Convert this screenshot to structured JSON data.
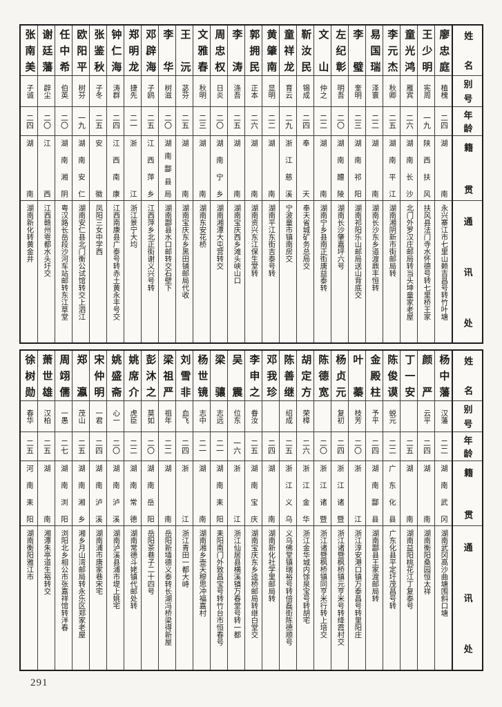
{
  "page": {
    "number": "291"
  },
  "headers": {
    "name": "姓名",
    "alias": "别号",
    "age": "年龄",
    "native": "籍贯",
    "address": "通讯处"
  },
  "table_top": {
    "entries": [
      {
        "name": "廖忠庭",
        "alias": "植槐",
        "age": "二四",
        "native": "湖南",
        "address": "永兴寨江市七里山赖吉昌号转竹叶塘"
      },
      {
        "name": "王少明",
        "alias": "宪周",
        "age": "一九",
        "native": "陕西扶风",
        "address": "扶风县法门寺水怀德号转七里桥王家"
      },
      {
        "name": "童光鸿",
        "alias": "雁宾",
        "age": "二六",
        "native": "湖南长沙",
        "address": "北门外罗汉庄邮局转当头坤童家老屋"
      },
      {
        "name": "李元杰",
        "alias": "秋卿",
        "age": "二五",
        "native": "湖南平江",
        "address": "湖南湘阴新市街邮局转"
      },
      {
        "name": "易国瑞",
        "alias": "泽寰",
        "age": "二二",
        "native": "湖南",
        "address": "湖南长沙东乡道渡鼎丰恒转"
      },
      {
        "name": "李璧",
        "alias": "奎明",
        "age": "二三",
        "native": "湖南祁阳",
        "address": "湖南祁阳乐山邮局送山背底交"
      },
      {
        "name": "左纪彰",
        "alias": "明吾",
        "age": "二〇",
        "native": "湖南醴陵",
        "address": "湖南长沙肇嘉坪六号"
      },
      {
        "name": "文山",
        "alias": "仲之",
        "age": "二二",
        "native": "湖南",
        "address": "湖南宁乡县南正街唐益泰转"
      },
      {
        "name": "靳汝民",
        "alias": "锡成",
        "age": "二四",
        "native": "奉天",
        "address": "奉天省城矿务总局交"
      },
      {
        "name": "童祥龙",
        "alias": "育云",
        "age": "二九",
        "native": "浙江慈溪",
        "address": "宁波童市镇南房交"
      },
      {
        "name": "黄肇南",
        "alias": "显明",
        "age": "二二",
        "native": "湖南",
        "address": "湖南平江东街吉泰号转"
      },
      {
        "name": "郭拥民",
        "alias": "正本",
        "age": "二六",
        "native": "湖南",
        "address": "湖南资兴东江保生堂转"
      },
      {
        "name": "李涛",
        "alias": "涤吾",
        "age": "二五",
        "native": "湖南",
        "address": "湖南宝庆西乡滩头峡山口"
      },
      {
        "name": "周忠权",
        "alias": "日炎",
        "age": "二〇",
        "native": "湖南宁乡",
        "address": "湖南湘潭大屯营转交"
      },
      {
        "name": "文雅春",
        "alias": "秋明",
        "age": "二三",
        "native": "湖南",
        "address": "湖南东安花桥"
      },
      {
        "name": "王沅",
        "alias": "苾芬",
        "age": "二五",
        "native": "湖南",
        "address": "湖南宝庆东乡黑田铺邮局代收"
      },
      {
        "name": "李华",
        "alias": "树滋",
        "age": "二〇",
        "native": "湖南酃县局",
        "address": "湖南酃县水口邮转交石壁下"
      },
      {
        "name": "邓辟海",
        "alias": "子鸥",
        "age": "二五",
        "native": "江西萍乡",
        "address": "江西萍乡北正街谢义兴号转"
      },
      {
        "name": "郑明龙",
        "alias": "捷先",
        "age": "二一",
        "native": "浙江",
        "address": "浙江景宁大均"
      },
      {
        "name": "钟仁海",
        "alias": "涛群",
        "age": "二四",
        "native": "江西南康",
        "address": "江西南康县广泰号转赤土黄永丰号交"
      },
      {
        "name": "张鉴秋",
        "alias": "子冬",
        "age": "二五",
        "native": "安徽",
        "address": "凤阳三女中学西"
      },
      {
        "name": "欧阳平",
        "alias": "树芬",
        "age": "一九",
        "native": "湖南安仁",
        "address": "湖南安仁县北门衡公试馆转交上泗江"
      },
      {
        "name": "任中希",
        "alias": "伯英",
        "age": "二〇",
        "native": "湖南湘阴",
        "address": "粤汉路长岳段沙河车站邮转东江草堂"
      },
      {
        "name": "谢廷藩",
        "alias": "辟尘",
        "age": "二〇",
        "native": "江西",
        "address": "江西赣州雩都水头圩交"
      },
      {
        "name": "张南美",
        "alias": "子诚",
        "age": "二四",
        "native": "湖南",
        "address": "湖南新化转黄金井"
      }
    ]
  },
  "table_bottom": {
    "entries": [
      {
        "name": "杨中藩",
        "alias": "汉藩",
        "age": "二二",
        "native": "湖南武冈",
        "address": "湖南武冈高沙曲塘围斜口塘"
      },
      {
        "name": "颜严",
        "alias": "云平",
        "age": "二四",
        "native": "湖南",
        "address": "湖南衡阳桑园恒太祥"
      },
      {
        "name": "丁一安",
        "alias": "",
        "age": "二五",
        "native": "湖南",
        "address": "湖南益阳桃花江丁复泰号"
      },
      {
        "name": "陈俊谟",
        "alias": "蜕元",
        "age": "二二",
        "native": "广东化县",
        "address": "广东化县平定圩茂昌号转"
      },
      {
        "name": "金殿柱",
        "alias": "予平",
        "age": "二四",
        "native": "湖南酃县",
        "address": "湖南酃县王家渡邮局转"
      },
      {
        "name": "叶蓁",
        "alias": "枝芳",
        "age": "二〇",
        "native": "浙江",
        "address": "浙江淳安港口镇万泰昌号转里阳庄"
      },
      {
        "name": "杨贞元",
        "alias": "复初",
        "age": "二四",
        "native": "浙江诸暨",
        "address": "浙江诸暨枫桥镇元亨米号转绛霞村交"
      },
      {
        "name": "陈德宽",
        "alias": "",
        "age": "二〇",
        "native": "浙江诸暨",
        "address": "浙江诸暨枫桥镇同亨米行转上培交"
      },
      {
        "name": "胡定方",
        "alias": "荣樟",
        "age": "二六",
        "native": "浙江金华",
        "address": "浙江金华城内馀泉宝号转胡宅"
      },
      {
        "name": "陈善继",
        "alias": "绍成",
        "age": "二五",
        "native": "浙江义乌",
        "address": "义乌佛堂镇瑞裕号转倍磊街陈德顺号"
      },
      {
        "name": "邓我珍",
        "alias": "",
        "age": "二四",
        "native": "湖南",
        "address": "湖南新化社学里邮局转"
      },
      {
        "name": "李申之",
        "alias": "眷汝",
        "age": "二五",
        "native": "湖南宝庆",
        "address": "湖南宝庆东乡逵桥邮局转继白堂交"
      },
      {
        "name": "吴震",
        "alias": "位东",
        "age": "一六",
        "native": "浙江",
        "address": "浙江仙居县横溪镇万春堂号转一都"
      },
      {
        "name": "梁骧",
        "alias": "志远",
        "age": "二一",
        "native": "湖南耒阳",
        "address": "耒阳南门外致昌宝号转竹台市恒春号"
      },
      {
        "name": "杨世镜",
        "alias": "志中",
        "age": "二一",
        "native": "湖南",
        "address": "湖南湘乡壶天穆思冲福嘉村"
      },
      {
        "name": "刘雪非",
        "alias": "血飞",
        "age": "二四",
        "native": "浙江",
        "address": "浙江青田一都大峙"
      },
      {
        "name": "梁祖严",
        "alias": "祖年",
        "age": "二二",
        "native": "湖南",
        "address": "岳阳新墙德义泰转长湖冯桥梁得新屋"
      },
      {
        "name": "彭沐之",
        "alias": "莫如",
        "age": "二〇",
        "native": "湖南岳阳",
        "address": "岳阳茶巷子二十四号"
      },
      {
        "name": "姚席介",
        "alias": "虎臣",
        "age": "二二",
        "native": "湖南常德",
        "address": "湖南常德斗姥镇代邮处转"
      },
      {
        "name": "姚盛斋",
        "alias": "心一",
        "age": "二〇",
        "native": "湖南泸溪",
        "address": "湖南泸溪县浦市堤上姚宅"
      },
      {
        "name": "宋仲明",
        "alias": "一君",
        "age": "二四",
        "native": "湖南泸溪",
        "address": "湖南浦市唐家巷宋宅"
      },
      {
        "name": "郑瀛",
        "alias": "茂山",
        "age": "二五",
        "native": "湖南湘乡",
        "address": "湘乡月山湾邮局转永乐区郑家老屋"
      },
      {
        "name": "周翊儒",
        "alias": "一愚",
        "age": "二七",
        "native": "湖南浏阳",
        "address": "浏阳北乡相公市张嘉祥馆转泮春"
      },
      {
        "name": "萧世雄",
        "alias": "汉柏",
        "age": "二五",
        "native": "湖南",
        "address": "湘潭朱亭道生裕转交"
      },
      {
        "name": "徐树勋",
        "alias": "春华",
        "age": "二五",
        "native": "河南耒阳",
        "address": "湖南衡阳雅江市"
      }
    ]
  }
}
